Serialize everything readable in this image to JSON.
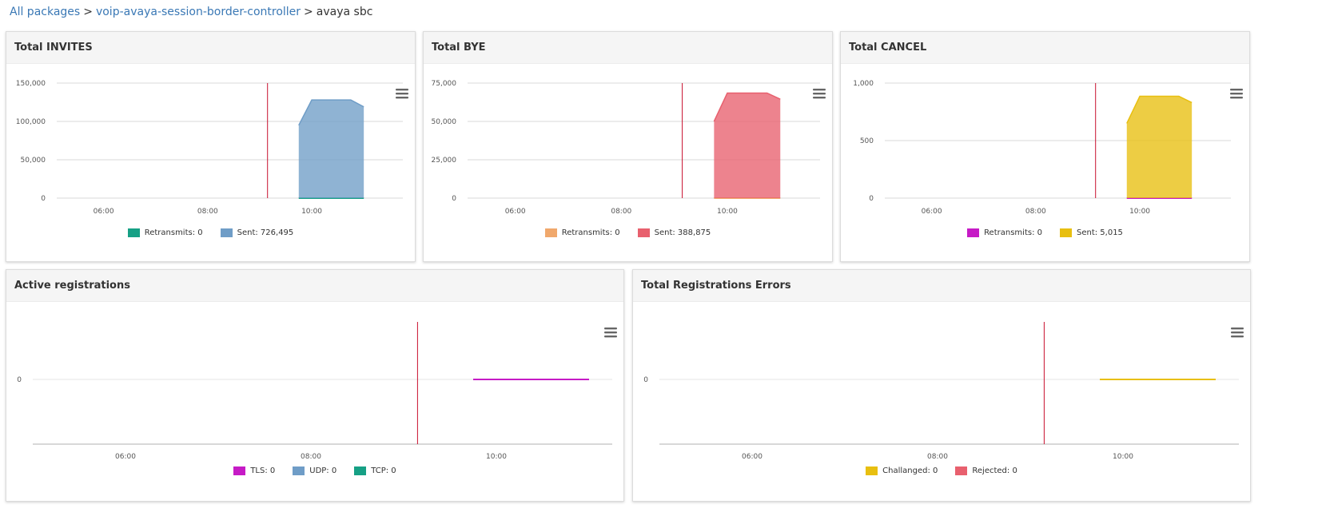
{
  "breadcrumb": {
    "item1": "All packages",
    "item2": "voip-avaya-session-border-controller",
    "current": "avaya sbc",
    "separator": ">"
  },
  "panels": {
    "invites": {
      "title": "Total INVITES",
      "legend": [
        {
          "label": "Retransmits: 0",
          "color": "#16a085"
        },
        {
          "label": "Sent: 726,495",
          "color": "#6f9dc7"
        }
      ]
    },
    "bye": {
      "title": "Total BYE",
      "legend": [
        {
          "label": "Retransmits: 0",
          "color": "#f0a86c"
        },
        {
          "label": "Sent: 388,875",
          "color": "#e8606e"
        }
      ]
    },
    "cancel": {
      "title": "Total CANCEL",
      "legend": [
        {
          "label": "Retransmits: 0",
          "color": "#c61bc6"
        },
        {
          "label": "Sent: 5,015",
          "color": "#e8bf10"
        }
      ]
    },
    "active_reg": {
      "title": "Active registrations",
      "legend": [
        {
          "label": "TLS: 0",
          "color": "#c61bc6"
        },
        {
          "label": "UDP: 0",
          "color": "#6f9dc7"
        },
        {
          "label": "TCP: 0",
          "color": "#16a085"
        }
      ]
    },
    "reg_errors": {
      "title": "Total Registrations Errors",
      "legend": [
        {
          "label": "Challanged: 0",
          "color": "#e8bf10"
        },
        {
          "label": "Rejected: 0",
          "color": "#e8606e"
        }
      ]
    }
  },
  "chart_data": [
    {
      "type": "area",
      "title": "Total INVITES",
      "x_ticks": [
        "06:00",
        "08:00",
        "10:00"
      ],
      "y_ticks": [
        "0",
        "50,000",
        "100,000",
        "150,000"
      ],
      "ylim": [
        0,
        150000
      ],
      "xlim": [
        5.1,
        11.75
      ],
      "marker_x": 9.15,
      "series": [
        {
          "name": "Retransmits",
          "color": "#16a085",
          "x": [
            9.75,
            11.0
          ],
          "y": [
            0,
            0
          ]
        },
        {
          "name": "Sent",
          "color": "#6f9dc7",
          "x": [
            9.75,
            10.0,
            10.75,
            11.0
          ],
          "y": [
            95000,
            128000,
            128000,
            119000
          ]
        }
      ]
    },
    {
      "type": "area",
      "title": "Total BYE",
      "x_ticks": [
        "06:00",
        "08:00",
        "10:00"
      ],
      "y_ticks": [
        "0",
        "25,000",
        "50,000",
        "75,000"
      ],
      "ylim": [
        0,
        75000
      ],
      "xlim": [
        5.1,
        11.75
      ],
      "marker_x": 9.15,
      "series": [
        {
          "name": "Retransmits",
          "color": "#f0a86c",
          "x": [
            9.75,
            11.0
          ],
          "y": [
            0,
            0
          ]
        },
        {
          "name": "Sent",
          "color": "#e8606e",
          "x": [
            9.75,
            10.0,
            10.75,
            11.0
          ],
          "y": [
            50000,
            68500,
            68500,
            64500
          ]
        }
      ]
    },
    {
      "type": "area",
      "title": "Total CANCEL",
      "x_ticks": [
        "06:00",
        "08:00",
        "10:00"
      ],
      "y_ticks": [
        "0",
        "500",
        "1,000"
      ],
      "ylim": [
        0,
        1000
      ],
      "xlim": [
        5.1,
        11.75
      ],
      "marker_x": 9.15,
      "series": [
        {
          "name": "Retransmits",
          "color": "#c61bc6",
          "x": [
            9.75,
            11.0
          ],
          "y": [
            0,
            0
          ]
        },
        {
          "name": "Sent",
          "color": "#e8bf10",
          "x": [
            9.75,
            10.0,
            10.75,
            11.0
          ],
          "y": [
            650,
            885,
            885,
            830
          ]
        }
      ]
    },
    {
      "type": "line",
      "title": "Active registrations",
      "x_ticks": [
        "06:00",
        "08:00",
        "10:00"
      ],
      "y_ticks": [
        "0"
      ],
      "ylim": [
        -1,
        1
      ],
      "xlim": [
        5.0,
        11.25
      ],
      "marker_x": 9.15,
      "series": [
        {
          "name": "TLS",
          "color": "#c61bc6",
          "x": [
            9.75,
            11.0
          ],
          "y": [
            0,
            0
          ]
        }
      ]
    },
    {
      "type": "line",
      "title": "Total Registrations Errors",
      "x_ticks": [
        "06:00",
        "08:00",
        "10:00"
      ],
      "y_ticks": [
        "0"
      ],
      "ylim": [
        -1,
        1
      ],
      "xlim": [
        5.0,
        11.25
      ],
      "marker_x": 9.15,
      "series": [
        {
          "name": "Challanged",
          "color": "#e8bf10",
          "x": [
            9.75,
            11.0
          ],
          "y": [
            0,
            0
          ]
        }
      ]
    }
  ]
}
